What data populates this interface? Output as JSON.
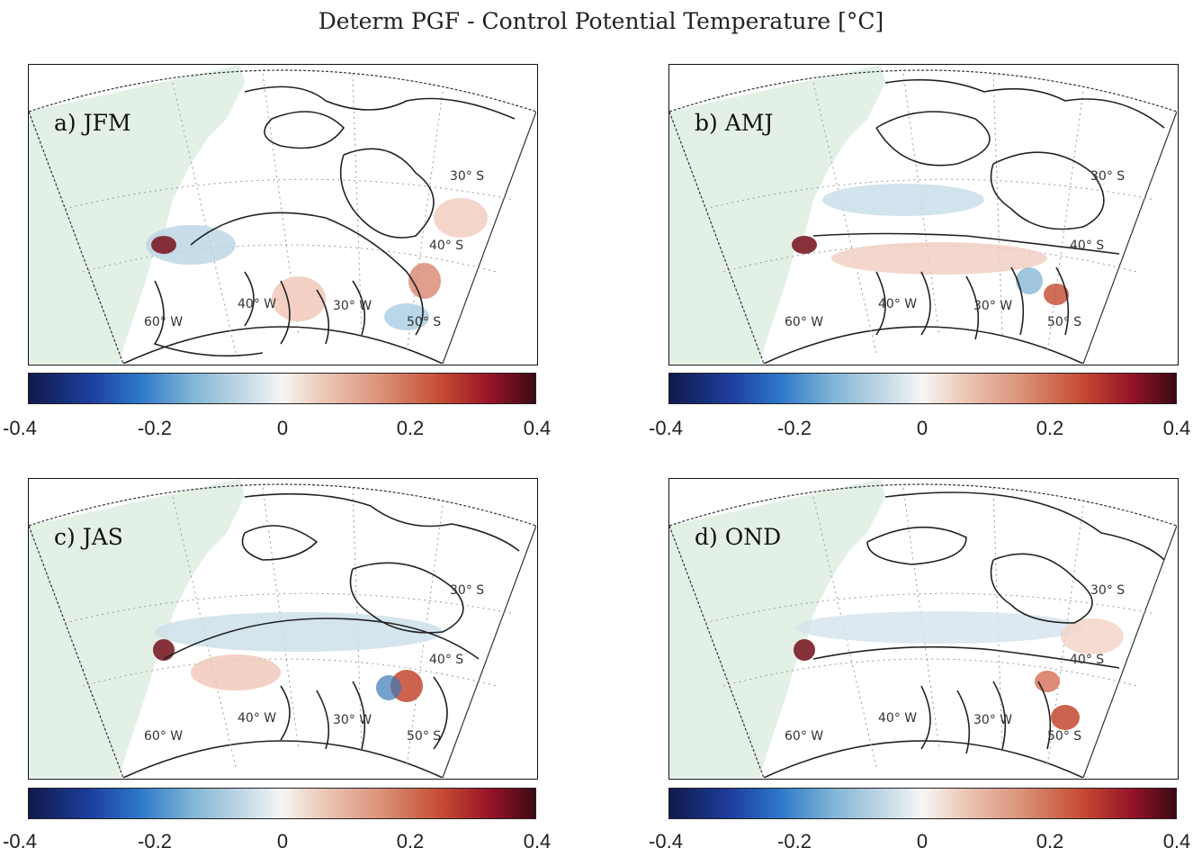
{
  "title": "Determ PGF - Control Potential Temperature [°C]",
  "panels": [
    {
      "label": "a) JFM",
      "lat_labels": [
        "30° S",
        "40° S",
        "50° S"
      ],
      "lon_labels": [
        "60° W",
        "40° W",
        "30° W"
      ]
    },
    {
      "label": "b) AMJ",
      "lat_labels": [
        "30° S",
        "40° S",
        "50° S"
      ],
      "lon_labels": [
        "60° W",
        "40° W",
        "30° W"
      ]
    },
    {
      "label": "c) JAS",
      "lat_labels": [
        "30° S",
        "40° S",
        "50° S"
      ],
      "lon_labels": [
        "60° W",
        "40° W",
        "30° W"
      ]
    },
    {
      "label": "d) OND",
      "lat_labels": [
        "30° S",
        "40° S",
        "50° S"
      ],
      "lon_labels": [
        "60° W",
        "40° W",
        "30° W"
      ]
    }
  ],
  "colorbar": {
    "ticks": [
      "-0.4",
      "-0.2",
      "0",
      "0.2",
      "0.4"
    ],
    "range": [
      -0.4,
      0.4
    ],
    "colormap": [
      "#101a4a",
      "#2e78c9",
      "#f6f6f4",
      "#c4482f",
      "#3c0a12"
    ]
  },
  "colors": {
    "land": "#e3f0e6",
    "contour": "#222222",
    "grid": "#9a9a9a"
  }
}
